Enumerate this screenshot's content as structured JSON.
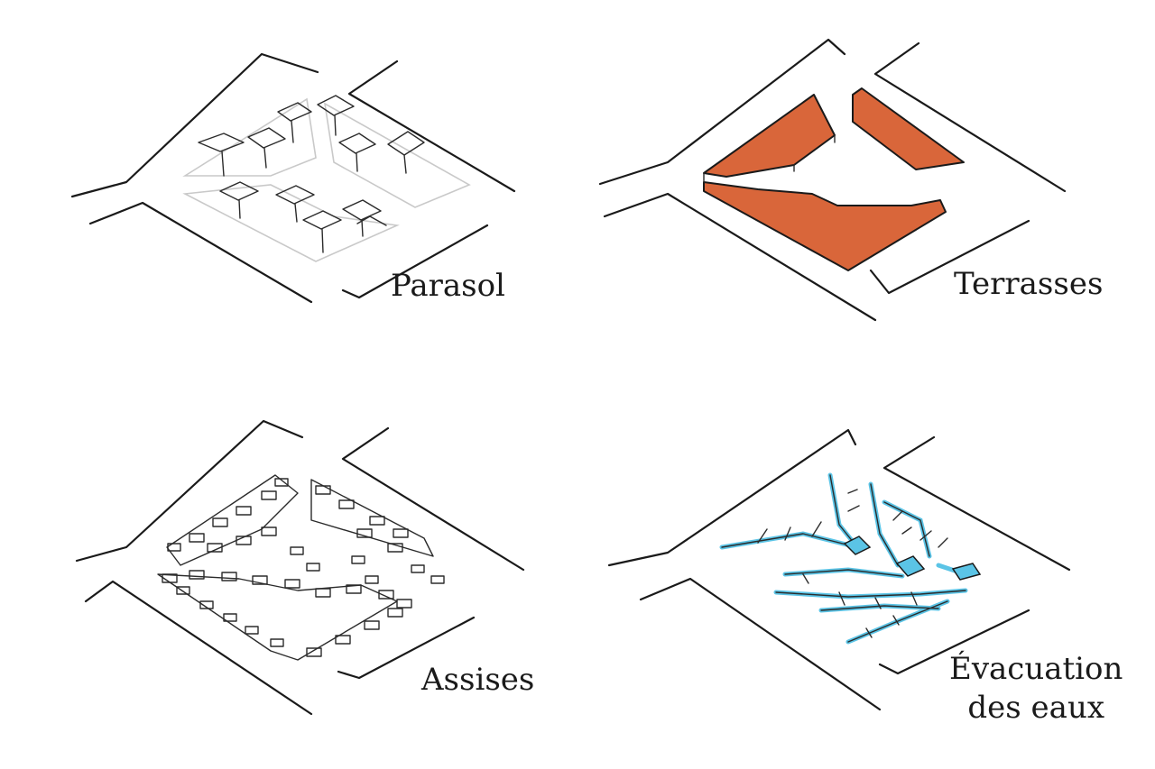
{
  "panels": [
    {
      "label": "Parasol"
    },
    {
      "label": "Terrasses"
    },
    {
      "label": "Assises"
    },
    {
      "label_line1": "Évacuation",
      "label_line2": "des eaux"
    }
  ],
  "colors": {
    "ink": "#1a1a1a",
    "terrace_fill": "#d9663a",
    "water_fill": "#5bc4e6",
    "background": "#ffffff"
  }
}
